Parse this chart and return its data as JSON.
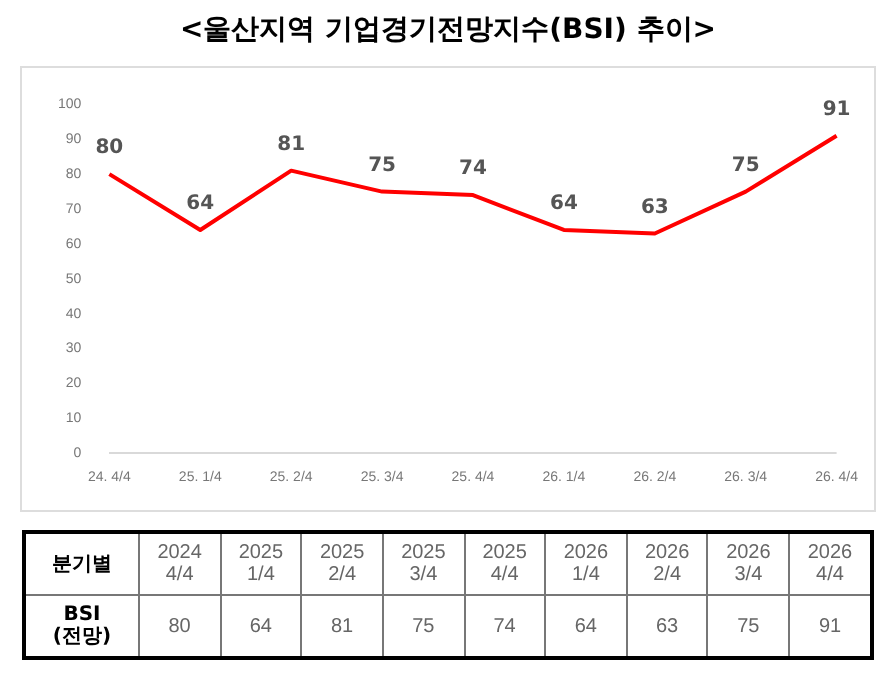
{
  "chart_data": [
    {
      "type": "line",
      "title": "<울산지역 기업경기전망지수(BSI) 추이>",
      "categories": [
        "24. 4/4",
        "25. 1/4",
        "25. 2/4",
        "25. 3/4",
        "25. 4/4",
        "26. 1/4",
        "26. 2/4",
        "26. 3/4",
        "26. 4/4"
      ],
      "series": [
        {
          "color": "#ff0000",
          "values": [
            80,
            64,
            81,
            75,
            74,
            64,
            63,
            75,
            91
          ]
        }
      ],
      "ylim": [
        0,
        100
      ],
      "yticks": [
        0,
        10,
        20,
        30,
        40,
        50,
        60,
        70,
        80,
        90,
        100
      ],
      "grid": false,
      "legend": false,
      "marker": "none",
      "data_labels": true
    },
    {
      "type": "heatmap",
      "categories": [
        "2024 4/4",
        "2025 1/4",
        "2025 2/4",
        "2025 3/4",
        "2025 4/4",
        "2026 1/4",
        "2026 2/4",
        "2026 3/4",
        "2026 4/4"
      ],
      "y_categories": [
        "BSI (전망)"
      ],
      "cells": [
        [
          80,
          64,
          81,
          75,
          74,
          64,
          63,
          75,
          91
        ]
      ],
      "data_labels": true,
      "annotations": [
        "분기별"
      ]
    }
  ]
}
